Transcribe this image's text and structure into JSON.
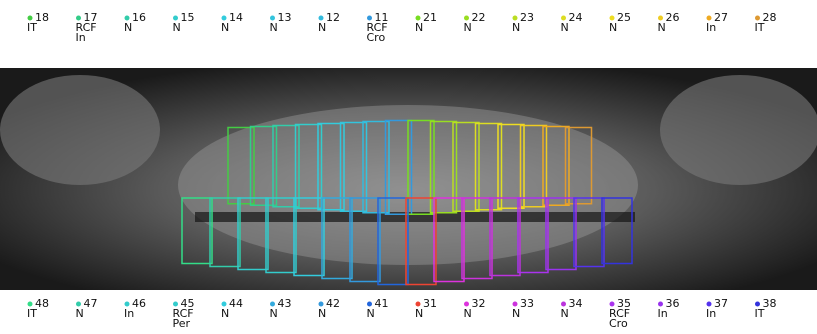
{
  "upper_teeth": [
    {
      "number": "18",
      "labels": [
        "IT"
      ],
      "color": "#44cc44"
    },
    {
      "number": "17",
      "labels": [
        "RCF",
        "In"
      ],
      "color": "#33cc88"
    },
    {
      "number": "16",
      "labels": [
        "N"
      ],
      "color": "#33ccaa"
    },
    {
      "number": "15",
      "labels": [
        "N"
      ],
      "color": "#33cccc"
    },
    {
      "number": "14",
      "labels": [
        "N"
      ],
      "color": "#33ccdd"
    },
    {
      "number": "13",
      "labels": [
        "N"
      ],
      "color": "#33c4dd"
    },
    {
      "number": "12",
      "labels": [
        "N"
      ],
      "color": "#33bbdd"
    },
    {
      "number": "11",
      "labels": [
        "RCF",
        "Cro"
      ],
      "color": "#3399dd"
    },
    {
      "number": "21",
      "labels": [
        "N"
      ],
      "color": "#77dd22"
    },
    {
      "number": "22",
      "labels": [
        "N"
      ],
      "color": "#99dd22"
    },
    {
      "number": "23",
      "labels": [
        "N"
      ],
      "color": "#bbdd22"
    },
    {
      "number": "24",
      "labels": [
        "N"
      ],
      "color": "#dddd22"
    },
    {
      "number": "25",
      "labels": [
        "N"
      ],
      "color": "#eedd22"
    },
    {
      "number": "26",
      "labels": [
        "N"
      ],
      "color": "#eecc22"
    },
    {
      "number": "27",
      "labels": [
        "In"
      ],
      "color": "#eeaa22"
    },
    {
      "number": "28",
      "labels": [
        "IT"
      ],
      "color": "#dd9933"
    }
  ],
  "lower_teeth": [
    {
      "number": "48",
      "labels": [
        "IT"
      ],
      "color": "#33dd88"
    },
    {
      "number": "47",
      "labels": [
        "N"
      ],
      "color": "#33ccaa"
    },
    {
      "number": "46",
      "labels": [
        "In"
      ],
      "color": "#33cccc"
    },
    {
      "number": "45",
      "labels": [
        "RCF",
        "Per"
      ],
      "color": "#33cccc"
    },
    {
      "number": "44",
      "labels": [
        "N"
      ],
      "color": "#33ccdd"
    },
    {
      "number": "43",
      "labels": [
        "N"
      ],
      "color": "#33aadd"
    },
    {
      "number": "42",
      "labels": [
        "N"
      ],
      "color": "#3399dd"
    },
    {
      "number": "41",
      "labels": [
        "N"
      ],
      "color": "#2266dd"
    },
    {
      "number": "31",
      "labels": [
        "N"
      ],
      "color": "#ee4433"
    },
    {
      "number": "32",
      "labels": [
        "N"
      ],
      "color": "#dd33dd"
    },
    {
      "number": "33",
      "labels": [
        "N"
      ],
      "color": "#cc33dd"
    },
    {
      "number": "34",
      "labels": [
        "N"
      ],
      "color": "#bb33dd"
    },
    {
      "number": "35",
      "labels": [
        "RCF",
        "Cro"
      ],
      "color": "#aa33ee"
    },
    {
      "number": "36",
      "labels": [
        "In"
      ],
      "color": "#9933ee"
    },
    {
      "number": "37",
      "labels": [
        "In"
      ],
      "color": "#5533ee"
    },
    {
      "number": "38",
      "labels": [
        "IT"
      ],
      "color": "#3333dd"
    }
  ]
}
